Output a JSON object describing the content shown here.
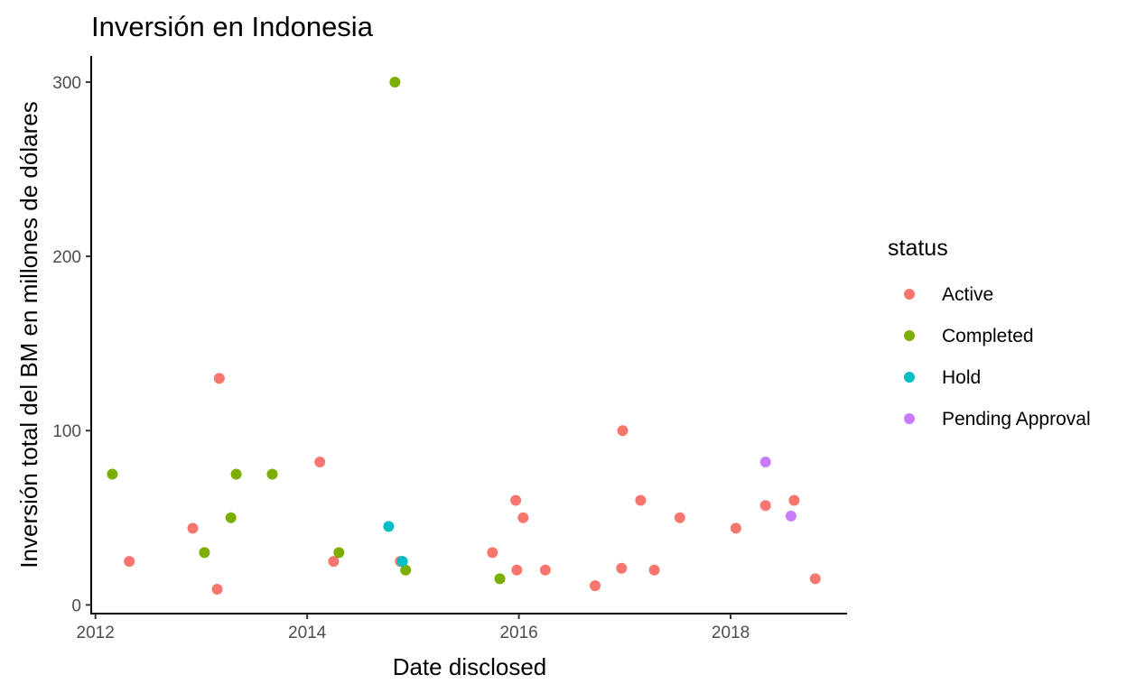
{
  "chart_data": {
    "type": "scatter",
    "title": "Inversión en Indonesia",
    "xlabel": "Date disclosed",
    "ylabel": "Inversión total del BM en millones de dólares",
    "xlim": [
      2011.96,
      2019.1
    ],
    "ylim": [
      -5,
      315
    ],
    "x_ticks": [
      2012,
      2014,
      2016,
      2018
    ],
    "x_tick_labels": [
      "2012",
      "2014",
      "2016",
      "2018"
    ],
    "y_ticks": [
      0,
      100,
      200,
      300
    ],
    "y_tick_labels": [
      "0",
      "100",
      "200",
      "300"
    ],
    "legend": {
      "title": "status",
      "position": "right",
      "entries": [
        {
          "label": "Active",
          "color": "#F8766D"
        },
        {
          "label": "Completed",
          "color": "#7CAE00"
        },
        {
          "label": "Hold",
          "color": "#00BFC4"
        },
        {
          "label": "Pending Approval",
          "color": "#C77CFF"
        }
      ]
    },
    "series": [
      {
        "name": "Active",
        "color": "#F8766D",
        "points": [
          {
            "x": 2012.32,
            "y": 25
          },
          {
            "x": 2012.92,
            "y": 44
          },
          {
            "x": 2013.15,
            "y": 9
          },
          {
            "x": 2013.17,
            "y": 130
          },
          {
            "x": 2014.12,
            "y": 82
          },
          {
            "x": 2014.25,
            "y": 25
          },
          {
            "x": 2014.88,
            "y": 25
          },
          {
            "x": 2015.75,
            "y": 30
          },
          {
            "x": 2015.97,
            "y": 60
          },
          {
            "x": 2015.98,
            "y": 20
          },
          {
            "x": 2016.04,
            "y": 50
          },
          {
            "x": 2016.25,
            "y": 20
          },
          {
            "x": 2016.72,
            "y": 11
          },
          {
            "x": 2016.97,
            "y": 21
          },
          {
            "x": 2016.98,
            "y": 100
          },
          {
            "x": 2017.15,
            "y": 60
          },
          {
            "x": 2017.28,
            "y": 20
          },
          {
            "x": 2017.52,
            "y": 50
          },
          {
            "x": 2018.05,
            "y": 44
          },
          {
            "x": 2018.33,
            "y": 57
          },
          {
            "x": 2018.6,
            "y": 60
          },
          {
            "x": 2018.8,
            "y": 15
          }
        ]
      },
      {
        "name": "Completed",
        "color": "#7CAE00",
        "points": [
          {
            "x": 2012.16,
            "y": 75
          },
          {
            "x": 2013.03,
            "y": 30
          },
          {
            "x": 2013.28,
            "y": 50
          },
          {
            "x": 2013.33,
            "y": 75
          },
          {
            "x": 2013.67,
            "y": 75
          },
          {
            "x": 2014.3,
            "y": 30
          },
          {
            "x": 2014.83,
            "y": 300
          },
          {
            "x": 2014.93,
            "y": 20
          },
          {
            "x": 2015.82,
            "y": 15
          }
        ]
      },
      {
        "name": "Hold",
        "color": "#00BFC4",
        "points": [
          {
            "x": 2014.77,
            "y": 45
          },
          {
            "x": 2014.9,
            "y": 25
          }
        ]
      },
      {
        "name": "Pending Approval",
        "color": "#C77CFF",
        "points": [
          {
            "x": 2018.33,
            "y": 82
          },
          {
            "x": 2018.57,
            "y": 51
          }
        ]
      }
    ]
  }
}
